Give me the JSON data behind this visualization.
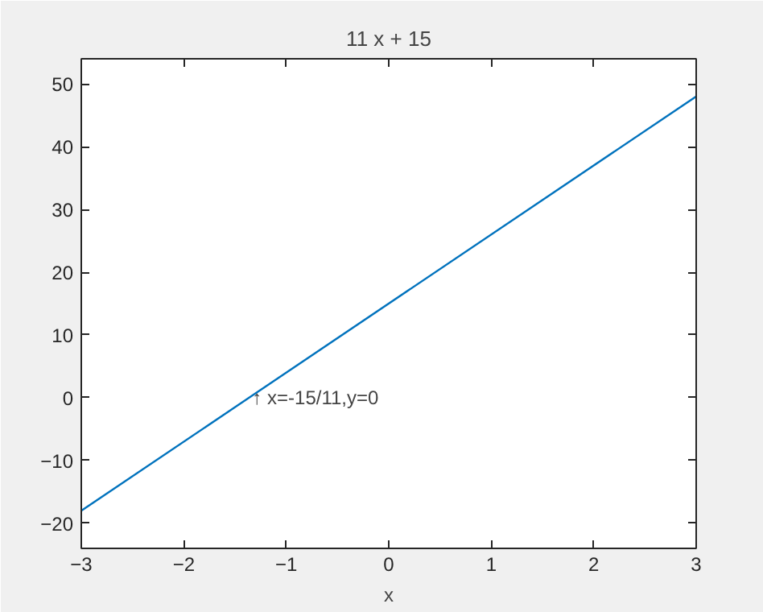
{
  "chart_data": {
    "type": "line",
    "title": "11 x + 15",
    "xlabel": "x",
    "x": [
      -3,
      3
    ],
    "series": [
      {
        "color": "#0072bd",
        "values": [
          -18,
          48
        ]
      }
    ],
    "xlim": [
      -3,
      3
    ],
    "ylim": [
      -24,
      54
    ],
    "xticks": [
      -3,
      -2,
      -1,
      0,
      1,
      2,
      3
    ],
    "yticks": [
      -20,
      -10,
      0,
      10,
      20,
      30,
      40,
      50
    ],
    "annotations": [
      {
        "text": "↑ x=-15/11,y=0",
        "x": -1.3636,
        "y": 0
      }
    ],
    "grid": false,
    "marker": "none",
    "line_style": "solid"
  }
}
